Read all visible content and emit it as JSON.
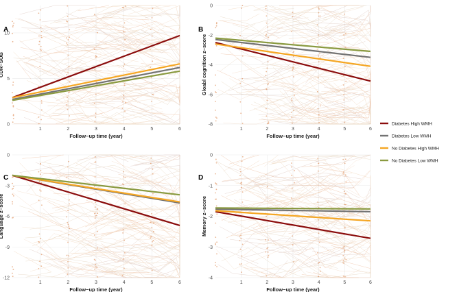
{
  "legend": [
    {
      "name": "Diabetes High WMH",
      "color": "#8b0d0d"
    },
    {
      "name": "Diabetes Low WMH",
      "color": "#737373"
    },
    {
      "name": "No Diabetes High WMH",
      "color": "#f5a623"
    },
    {
      "name": "No Diabetes Low WMH",
      "color": "#8a9a40"
    }
  ],
  "chart_data": [
    {
      "type": "line",
      "panel": "A",
      "title": "",
      "xlabel": "Follow−up time (year)",
      "ylabel": "CDR−SOB",
      "xlim": [
        0,
        6
      ],
      "ylim": [
        0,
        13
      ],
      "xticks": [
        1,
        2,
        3,
        4,
        5,
        6
      ],
      "yticks": [
        0,
        5,
        10
      ],
      "grid": true,
      "series": [
        {
          "name": "Diabetes High WMH",
          "x": [
            0,
            6
          ],
          "values": [
            2.9,
            9.7
          ]
        },
        {
          "name": "Diabetes Low WMH",
          "x": [
            0,
            6
          ],
          "values": [
            2.7,
            6.2
          ]
        },
        {
          "name": "No Diabetes High WMH",
          "x": [
            0,
            6
          ],
          "values": [
            2.9,
            6.6
          ]
        },
        {
          "name": "No Diabetes Low WMH",
          "x": [
            0,
            6
          ],
          "values": [
            2.6,
            5.8
          ]
        }
      ]
    },
    {
      "type": "line",
      "panel": "B",
      "title": "",
      "xlabel": "Follow−up time (year)",
      "ylabel": "Gloabl cognition z−score",
      "xlim": [
        0,
        6
      ],
      "ylim": [
        -8,
        0
      ],
      "xticks": [
        1,
        2,
        3,
        4,
        5,
        6
      ],
      "yticks": [
        0,
        -2,
        -4,
        -6,
        -8
      ],
      "grid": true,
      "series": [
        {
          "name": "Diabetes High WMH",
          "x": [
            0,
            6
          ],
          "values": [
            -2.5,
            -5.1
          ]
        },
        {
          "name": "Diabetes Low WMH",
          "x": [
            0,
            6
          ],
          "values": [
            -2.3,
            -3.5
          ]
        },
        {
          "name": "No Diabetes High WMH",
          "x": [
            0,
            6
          ],
          "values": [
            -2.6,
            -4.1
          ]
        },
        {
          "name": "No Diabetes Low WMH",
          "x": [
            0,
            6
          ],
          "values": [
            -2.2,
            -3.1
          ]
        }
      ]
    },
    {
      "type": "line",
      "panel": "C",
      "title": "",
      "xlabel": "Follow−up time (year)",
      "ylabel": "Language z−score",
      "xlim": [
        0,
        6
      ],
      "ylim": [
        -12,
        0
      ],
      "xticks": [
        1,
        2,
        3,
        4,
        5,
        6
      ],
      "yticks": [
        0,
        -3,
        -6,
        -9,
        -12
      ],
      "grid": true,
      "series": [
        {
          "name": "Diabetes High WMH",
          "x": [
            0,
            6
          ],
          "values": [
            -2.0,
            -6.9
          ]
        },
        {
          "name": "Diabetes Low WMH",
          "x": [
            0,
            6
          ],
          "values": [
            -2.0,
            -4.7
          ]
        },
        {
          "name": "No Diabetes High WMH",
          "x": [
            0,
            6
          ],
          "values": [
            -2.0,
            -4.6
          ]
        },
        {
          "name": "No Diabetes Low WMH",
          "x": [
            0,
            6
          ],
          "values": [
            -2.0,
            -3.9
          ]
        }
      ]
    },
    {
      "type": "line",
      "panel": "D",
      "title": "",
      "xlabel": "Follow−up time (year)",
      "ylabel": "Memory z−score",
      "xlim": [
        0,
        6
      ],
      "ylim": [
        -4,
        0
      ],
      "xticks": [
        1,
        2,
        3,
        4,
        5,
        6
      ],
      "yticks": [
        0,
        -1,
        -2,
        -3,
        -4
      ],
      "grid": true,
      "series": [
        {
          "name": "Diabetes High WMH",
          "x": [
            0,
            6
          ],
          "values": [
            -1.85,
            -2.72
          ]
        },
        {
          "name": "Diabetes Low WMH",
          "x": [
            0,
            6
          ],
          "values": [
            -1.77,
            -1.85
          ]
        },
        {
          "name": "No Diabetes High WMH",
          "x": [
            0,
            6
          ],
          "values": [
            -1.82,
            -2.15
          ]
        },
        {
          "name": "No Diabetes Low WMH",
          "x": [
            0,
            6
          ],
          "values": [
            -1.73,
            -1.76
          ]
        }
      ]
    }
  ]
}
